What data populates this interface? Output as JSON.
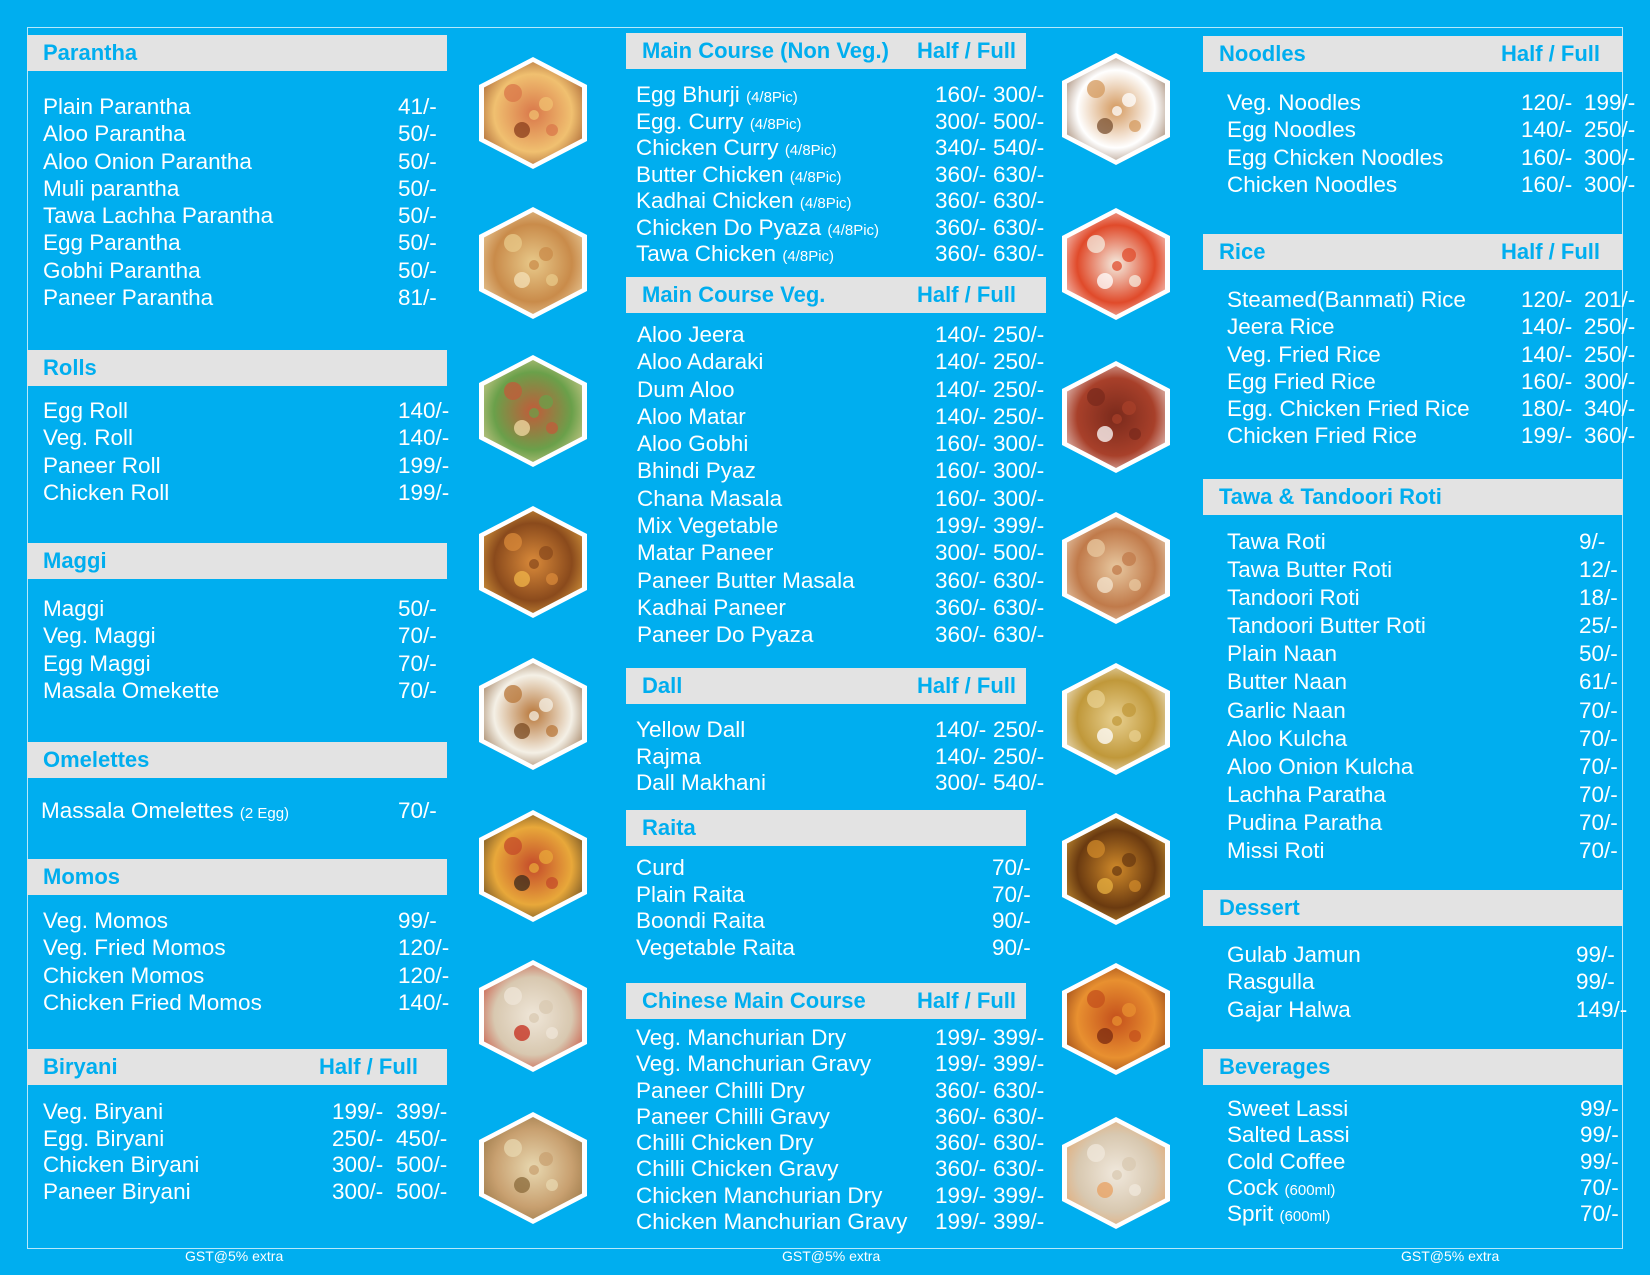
{
  "left": {
    "parantha": {
      "title": "Parantha",
      "items": [
        {
          "name": "Plain Parantha",
          "price": "41/-"
        },
        {
          "name": "Aloo Parantha",
          "price": "50/-"
        },
        {
          "name": "Aloo Onion Parantha",
          "price": "50/-"
        },
        {
          "name": "Muli parantha",
          "price": "50/-"
        },
        {
          "name": "Tawa Lachha Parantha",
          "price": "50/-"
        },
        {
          "name": "Egg Parantha",
          "price": "50/-"
        },
        {
          "name": "Gobhi Parantha",
          "price": "50/-"
        },
        {
          "name": "Paneer Parantha",
          "price": "81/-"
        }
      ]
    },
    "rolls": {
      "title": "Rolls",
      "items": [
        {
          "name": "Egg Roll",
          "price": "140/-"
        },
        {
          "name": "Veg. Roll",
          "price": "140/-"
        },
        {
          "name": "Paneer Roll",
          "price": "199/-"
        },
        {
          "name": "Chicken Roll",
          "price": "199/-"
        }
      ]
    },
    "maggi": {
      "title": "Maggi",
      "items": [
        {
          "name": "Maggi",
          "price": "50/-"
        },
        {
          "name": "Veg. Maggi",
          "price": "70/-"
        },
        {
          "name": "Egg Maggi",
          "price": "70/-"
        },
        {
          "name": "Masala Omekette",
          "price": "70/-"
        }
      ]
    },
    "omelettes": {
      "title": "Omelettes",
      "items": [
        {
          "name": "Massala Omelettes",
          "note": "(2 Egg)",
          "price": "70/-"
        }
      ]
    },
    "momos": {
      "title": "Momos",
      "items": [
        {
          "name": "Veg. Momos",
          "price": "99/-"
        },
        {
          "name": "Veg. Fried Momos",
          "price": "120/-"
        },
        {
          "name": "Chicken Momos",
          "price": "120/-"
        },
        {
          "name": "Chicken Fried Momos",
          "price": "140/-"
        }
      ]
    },
    "biryani": {
      "title": "Biryani",
      "half_full": "Half / Full",
      "items": [
        {
          "name": "Veg. Biryani",
          "half": "199/-",
          "full": "399/-"
        },
        {
          "name": "Egg. Biryani",
          "half": "250/-",
          "full": "450/-"
        },
        {
          "name": "Chicken Biryani",
          "half": "300/-",
          "full": "500/-"
        },
        {
          "name": "Paneer Biryani",
          "half": "300/-",
          "full": "500/-"
        }
      ]
    }
  },
  "middle": {
    "nonveg": {
      "title": "Main Course (Non Veg.)",
      "half_full": "Half / Full",
      "items": [
        {
          "name": "Egg Bhurji",
          "note": "(4/8Pic)",
          "half": "160/-",
          "full": "300/-"
        },
        {
          "name": "Egg. Curry",
          "note": "(4/8Pic)",
          "half": "300/-",
          "full": "500/-"
        },
        {
          "name": "Chicken Curry",
          "note": "(4/8Pic)",
          "half": "340/-",
          "full": "540/-"
        },
        {
          "name": "Butter Chicken",
          "note": "(4/8Pic)",
          "half": "360/-",
          "full": "630/-"
        },
        {
          "name": "Kadhai Chicken",
          "note": "(4/8Pic)",
          "half": "360/-",
          "full": "630/-"
        },
        {
          "name": "Chicken Do Pyaza",
          "note": "(4/8Pic)",
          "half": "360/-",
          "full": "630/-"
        },
        {
          "name": "Tawa Chicken",
          "note": "(4/8Pic)",
          "half": "360/-",
          "full": "630/-"
        }
      ]
    },
    "veg": {
      "title": "Main Course Veg.",
      "half_full": "Half / Full",
      "items": [
        {
          "name": "Aloo Jeera",
          "half": "140/-",
          "full": "250/-"
        },
        {
          "name": "Aloo Adaraki",
          "half": "140/-",
          "full": "250/-"
        },
        {
          "name": "Dum Aloo",
          "half": "140/-",
          "full": "250/-"
        },
        {
          "name": "Aloo Matar",
          "half": "140/-",
          "full": "250/-"
        },
        {
          "name": "Aloo Gobhi",
          "half": "160/-",
          "full": "300/-"
        },
        {
          "name": "Bhindi Pyaz",
          "half": "160/-",
          "full": "300/-"
        },
        {
          "name": "Chana Masala",
          "half": "160/-",
          "full": "300/-"
        },
        {
          "name": "Mix Vegetable",
          "half": "199/-",
          "full": "399/-"
        },
        {
          "name": "Matar Paneer",
          "half": "300/-",
          "full": "500/-"
        },
        {
          "name": "Paneer Butter Masala",
          "half": "360/-",
          "full": "630/-"
        },
        {
          "name": "Kadhai Paneer",
          "half": "360/-",
          "full": "630/-"
        },
        {
          "name": "Paneer Do Pyaza",
          "half": "360/-",
          "full": "630/-"
        }
      ]
    },
    "dall": {
      "title": "Dall",
      "half_full": "Half / Full",
      "items": [
        {
          "name": "Yellow Dall",
          "half": "140/-",
          "full": "250/-"
        },
        {
          "name": "Rajma",
          "half": "140/-",
          "full": "250/-"
        },
        {
          "name": "Dall Makhani",
          "half": "300/-",
          "full": "540/-"
        }
      ]
    },
    "raita": {
      "title": "Raita",
      "items": [
        {
          "name": "Curd",
          "price": "70/-"
        },
        {
          "name": "Plain Raita",
          "price": "70/-"
        },
        {
          "name": "Boondi Raita",
          "price": "90/-"
        },
        {
          "name": "Vegetable Raita",
          "price": "90/-"
        }
      ]
    },
    "chinese": {
      "title": "Chinese Main Course",
      "half_full": "Half / Full",
      "items": [
        {
          "name": "Veg. Manchurian Dry",
          "half": "199/-",
          "full": "399/-"
        },
        {
          "name": "Veg. Manchurian Gravy",
          "half": "199/-",
          "full": "399/-"
        },
        {
          "name": "Paneer Chilli Dry",
          "half": "360/-",
          "full": "630/-"
        },
        {
          "name": "Paneer Chilli Gravy",
          "half": "360/-",
          "full": "630/-"
        },
        {
          "name": "Chilli Chicken Dry",
          "half": "360/-",
          "full": "630/-"
        },
        {
          "name": "Chilli Chicken Gravy",
          "half": "360/-",
          "full": "630/-"
        },
        {
          "name": "Chicken Manchurian Dry",
          "half": "199/-",
          "full": "399/-"
        },
        {
          "name": "Chicken Manchurian Gravy",
          "half": "199/-",
          "full": "399/-"
        }
      ]
    }
  },
  "right": {
    "noodles": {
      "title": "Noodles",
      "half_full": "Half / Full",
      "items": [
        {
          "name": "Veg. Noodles",
          "half": "120/-",
          "full": "199/-"
        },
        {
          "name": "Egg Noodles",
          "half": "140/-",
          "full": "250/-"
        },
        {
          "name": "Egg Chicken Noodles",
          "half": "160/-",
          "full": "300/-"
        },
        {
          "name": "Chicken Noodles",
          "half": "160/-",
          "full": "300/-"
        }
      ]
    },
    "rice": {
      "title": "Rice",
      "half_full": "Half / Full",
      "items": [
        {
          "name": "Steamed(Banmati) Rice",
          "half": "120/-",
          "full": "201/-"
        },
        {
          "name": "Jeera Rice",
          "half": "140/-",
          "full": "250/-"
        },
        {
          "name": "Veg. Fried Rice",
          "half": "140/-",
          "full": "250/-"
        },
        {
          "name": "Egg Fried Rice",
          "half": "160/-",
          "full": "300/-"
        },
        {
          "name": "Egg. Chicken Fried Rice",
          "half": "180/-",
          "full": "340/-"
        },
        {
          "name": "Chicken Fried Rice",
          "half": "199/-",
          "full": "360/-"
        }
      ]
    },
    "roti": {
      "title": "Tawa & Tandoori Roti",
      "items": [
        {
          "name": "Tawa Roti",
          "price": "9/-"
        },
        {
          "name": "Tawa Butter Roti",
          "price": "12/-"
        },
        {
          "name": "Tandoori Roti",
          "price": "18/-"
        },
        {
          "name": "Tandoori Butter Roti",
          "price": "25/-"
        },
        {
          "name": "Plain Naan",
          "price": "50/-"
        },
        {
          "name": "Butter Naan",
          "price": "61/-"
        },
        {
          "name": "Garlic Naan",
          "price": "70/-"
        },
        {
          "name": "Aloo Kulcha",
          "price": "70/-"
        },
        {
          "name": "Aloo Onion Kulcha",
          "price": "70/-"
        },
        {
          "name": "Lachha Paratha",
          "price": "70/-"
        },
        {
          "name": "Pudina Paratha",
          "price": "70/-"
        },
        {
          "name": "Missi Roti",
          "price": "70/-"
        }
      ]
    },
    "dessert": {
      "title": "Dessert",
      "items": [
        {
          "name": "Gulab Jamun",
          "price": "99/-"
        },
        {
          "name": "Rasgulla",
          "price": "99/-"
        },
        {
          "name": "Gajar Halwa",
          "price": "149/-"
        }
      ]
    },
    "beverages": {
      "title": "Beverages",
      "items": [
        {
          "name": "Sweet Lassi",
          "price": "99/-"
        },
        {
          "name": "Salted Lassi",
          "price": "99/-"
        },
        {
          "name": "Cold Coffee",
          "price": "99/-"
        },
        {
          "name": "Cock",
          "note": "(600ml)",
          "price": "70/-"
        },
        {
          "name": "Sprit",
          "note": "(600ml)",
          "price": "70/-"
        }
      ]
    }
  },
  "footer": {
    "gst": [
      "GST@5% extra",
      "GST@5% extra",
      "GST@5% extra"
    ]
  },
  "images_left": [
    "parantha-photo",
    "aloo-parantha-photo",
    "roll-photo",
    "noodles-photo",
    "egg-maggi-photo",
    "chilli-noodles-photo",
    "rice-photo",
    "biryani-photo"
  ],
  "images_right": [
    "tea-photo",
    "momos-photo",
    "gulab-jamun-photo",
    "naan-photo",
    "garlic-naan-photo",
    "aloo-dish-photo",
    "chana-masala-photo",
    "raita-photo"
  ],
  "colors": {
    "background": "#00aeef",
    "header_bg": "#e3e3e3",
    "header_text": "#00aeef",
    "item_text": "#ffffff"
  }
}
